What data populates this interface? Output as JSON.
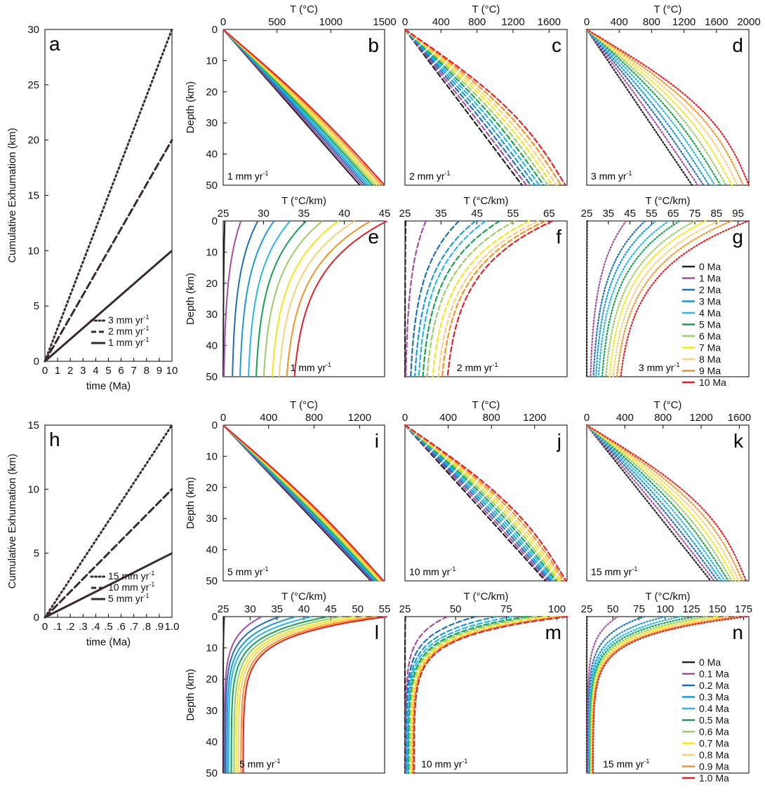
{
  "chart_data": [
    {
      "id": "a",
      "letter": "a",
      "type": "line",
      "xlabel": "time (Ma)",
      "ylabel": "Cumulative Exhumation (km)",
      "xlim": [
        0,
        10
      ],
      "ylim": [
        0,
        30
      ],
      "xticks": [
        "0",
        "1",
        "2",
        "3",
        "4",
        "5",
        "6",
        "7",
        "8",
        "9",
        "10"
      ],
      "yticks": [
        "0",
        "5",
        "10",
        "15",
        "20",
        "25",
        "30"
      ],
      "series": [
        {
          "name": "3 mm yr",
          "sup": "-1",
          "style": "dot",
          "x": [
            0,
            10
          ],
          "y": [
            0,
            30
          ]
        },
        {
          "name": "2 mm yr",
          "sup": "-1",
          "style": "dash",
          "x": [
            0,
            10
          ],
          "y": [
            0,
            20
          ]
        },
        {
          "name": "1 mm yr",
          "sup": "-1",
          "style": "solid",
          "x": [
            0,
            10
          ],
          "y": [
            0,
            10
          ]
        }
      ]
    },
    {
      "id": "b",
      "letter": "b",
      "type": "line",
      "xlabel": "T (°C)",
      "ylabel": "Depth (km)",
      "xmax": 1500,
      "xticks": [
        "0",
        "500",
        "1000",
        "1500"
      ],
      "yticks": [
        "0",
        "10",
        "20",
        "30",
        "40",
        "50"
      ],
      "rate": "1 mm yr",
      "rate_sup": "-1",
      "style": "solid",
      "series_range": {
        "T_base_min": 1270,
        "T_base_max": 1500,
        "first_label": "0 Ma",
        "last_label": "10 Ma",
        "count": 11
      }
    },
    {
      "id": "c",
      "letter": "c",
      "type": "line",
      "xlabel": "T (°C)",
      "ylabel": "",
      "xmax": 1800,
      "xticks": [
        "0",
        "400",
        "800",
        "1200",
        "1600"
      ],
      "yticks": [],
      "rate": "2 mm yr",
      "rate_sup": "-1",
      "style": "dash",
      "series_range": {
        "T_base_min": 1300,
        "T_base_max": 1780,
        "first_label": "0 Ma",
        "last_label": "10 Ma",
        "count": 11
      }
    },
    {
      "id": "d",
      "letter": "d",
      "type": "line",
      "xlabel": "T (°C)",
      "ylabel": "",
      "xmax": 2000,
      "xticks": [
        "0",
        "400",
        "800",
        "1200",
        "1600",
        "2000"
      ],
      "yticks": [],
      "rate": "3 mm yr",
      "rate_sup": "-1",
      "style": "dot",
      "series_range": {
        "T_base_min": 1300,
        "T_base_max": 2000,
        "first_label": "0 Ma",
        "last_label": "10 Ma",
        "count": 11
      }
    },
    {
      "id": "e",
      "letter": "e",
      "type": "line",
      "xlabel": "T (°C/km)",
      "ylabel": "Depth (km)",
      "xmin": 25,
      "xmax": 45,
      "xticks": [
        "25",
        "30",
        "35",
        "40",
        "45"
      ],
      "yticks": [
        "0",
        "10",
        "20",
        "30",
        "40",
        "50"
      ],
      "rate": "1 mm yr",
      "rate_sup": "-1",
      "style": "solid",
      "series_range": {
        "G_base": [
          25.2,
          27.2,
          29.3,
          31.3,
          33.3,
          35.3,
          37.3,
          39.3,
          41.3,
          43.3,
          45.3
        ],
        "G_bottom": [
          25,
          25,
          26,
          26.9,
          27.9,
          28.8,
          29.7,
          30.7,
          31.5,
          32.4,
          33.3
        ]
      }
    },
    {
      "id": "f",
      "letter": "f",
      "type": "line",
      "xlabel": "T (°C/km)",
      "ylabel": "",
      "xmin": 25,
      "xmax": 70,
      "xticks": [
        "25",
        "35",
        "45",
        "55",
        "65"
      ],
      "yticks": [],
      "rate": "2 mm yr",
      "rate_sup": "-1",
      "style": "dash",
      "series_range": {
        "G_base": [
          25.2,
          30.8,
          40,
          44.6,
          47.4,
          51.3,
          55.5,
          59.5,
          62,
          64,
          66
        ],
        "G_bottom": [
          25,
          25,
          26,
          27,
          28,
          29,
          30,
          31.5,
          33,
          34,
          35.5
        ]
      }
    },
    {
      "id": "g",
      "letter": "g",
      "type": "line",
      "xlabel": "T (°C/km)",
      "ylabel": "",
      "xmin": 25,
      "xmax": 100,
      "xticks": [
        "25",
        "35",
        "45",
        "55",
        "65",
        "75",
        "85",
        "95"
      ],
      "yticks": [],
      "rate": "3 mm yr",
      "rate_sup": "-1",
      "style": "dot",
      "series_range": {
        "G_base": [
          25.2,
          43.2,
          52,
          57,
          63,
          68,
          75,
          80,
          86,
          92,
          100
        ],
        "G_bottom": [
          25,
          26,
          27,
          28,
          29,
          30.5,
          32,
          33.5,
          35,
          36.5,
          38
        ]
      },
      "legend": [
        "0 Ma",
        "1 Ma",
        "2 Ma",
        "3 Ma",
        "4 Ma",
        "5 Ma",
        "6 Ma",
        "7 Ma",
        "8 Ma",
        "9 Ma",
        "10 Ma"
      ]
    },
    {
      "id": "h",
      "letter": "h",
      "type": "line",
      "xlabel": "time (Ma)",
      "ylabel": "Cumulative Exhumation (km)",
      "xlim": [
        0,
        1
      ],
      "ylim": [
        0,
        15
      ],
      "xticks": [
        "0",
        ".1",
        ".2",
        ".3",
        ".4",
        ".5",
        ".6",
        ".7",
        ".8",
        ".9",
        "1.0"
      ],
      "yticks": [
        "0",
        "5",
        "10",
        "15"
      ],
      "series": [
        {
          "name": "15 mm yr",
          "sup": "-1",
          "style": "dot",
          "x": [
            0,
            1
          ],
          "y": [
            0,
            15
          ]
        },
        {
          "name": "10 mm yr",
          "sup": "-1",
          "style": "dash",
          "x": [
            0,
            1
          ],
          "y": [
            0,
            10
          ]
        },
        {
          "name": "5 mm yr",
          "sup": "-1",
          "style": "solid",
          "x": [
            0,
            1
          ],
          "y": [
            0,
            5
          ]
        }
      ]
    },
    {
      "id": "i",
      "letter": "i",
      "type": "line",
      "xlabel": "T (°C)",
      "ylabel": "Depth (km)",
      "xmax": 1420,
      "xticks": [
        "0",
        "400",
        "800",
        "1200"
      ],
      "yticks": [
        "0",
        "10",
        "20",
        "30",
        "40",
        "50"
      ],
      "rate": "5 mm yr",
      "rate_sup": "-1",
      "style": "solid",
      "series_range": {
        "T_base_min": 1300,
        "T_base_max": 1410,
        "first_label": "0 Ma",
        "last_label": "1.0 Ma",
        "count": 11
      }
    },
    {
      "id": "j",
      "letter": "j",
      "type": "line",
      "xlabel": "T (°C)",
      "ylabel": "",
      "xmax": 1500,
      "xticks": [
        "0",
        "400",
        "800",
        "1200"
      ],
      "yticks": [],
      "rate": "10 mm yr",
      "rate_sup": "-1",
      "style": "dash",
      "series_range": {
        "T_base_min": 1300,
        "T_base_max": 1490,
        "first_label": "0 Ma",
        "last_label": "1.0 Ma",
        "count": 11
      }
    },
    {
      "id": "k",
      "letter": "k",
      "type": "line",
      "xlabel": "T (°C)",
      "ylabel": "",
      "xmax": 1700,
      "xticks": [
        "0",
        "400",
        "800",
        "1200",
        "1600"
      ],
      "yticks": [],
      "rate": "15 mm yr",
      "rate_sup": "-1",
      "style": "dot",
      "series_range": {
        "T_base_min": 1300,
        "T_base_max": 1670,
        "first_label": "0 Ma",
        "last_label": "1.0 Ma",
        "count": 11
      }
    },
    {
      "id": "l",
      "letter": "l",
      "type": "line",
      "xlabel": "T (°C/km)",
      "ylabel": "Depth (km)",
      "xmin": 25,
      "xmax": 55,
      "xticks": [
        "25",
        "30",
        "35",
        "40",
        "45",
        "50",
        "55"
      ],
      "yticks": [
        "0",
        "10",
        "20",
        "30",
        "40",
        "50"
      ],
      "rate": "5 mm yr",
      "rate_sup": "-1",
      "style": "solid",
      "series_range": {
        "G_base": [
          25.2,
          32.2,
          35.5,
          38.5,
          41.5,
          44.5,
          47,
          49.5,
          51.5,
          53.5,
          55.5
        ],
        "G_bottom": [
          25,
          25.2,
          25.4,
          25.7,
          26,
          26.5,
          27,
          27.4,
          27.8,
          28.3,
          28.7
        ]
      }
    },
    {
      "id": "m",
      "letter": "m",
      "type": "line",
      "xlabel": "T (°C/km)",
      "ylabel": "",
      "xmin": 25,
      "xmax": 105,
      "xticks": [
        "25",
        "50",
        "75",
        "100"
      ],
      "yticks": [],
      "rate": "10 mm yr",
      "rate_sup": "-1",
      "style": "dash",
      "series_range": {
        "G_base": [
          25.2,
          46,
          60,
          70,
          78,
          85,
          90,
          95,
          99,
          102,
          105
        ],
        "G_bottom": [
          25,
          25.3,
          25.6,
          26,
          26.4,
          26.9,
          27.4,
          27.9,
          28.4,
          28.9,
          29.4
        ]
      }
    },
    {
      "id": "n",
      "letter": "n",
      "type": "line",
      "xlabel": "T (°C/km)",
      "ylabel": "",
      "xmin": 25,
      "xmax": 180,
      "xticks": [
        "25",
        "50",
        "75",
        "100",
        "125",
        "150",
        "175"
      ],
      "yticks": [],
      "rate": "15 mm yr",
      "rate_sup": "-1",
      "style": "dot",
      "series_range": {
        "G_base": [
          25.2,
          55,
          80,
          100,
          115,
          128,
          140,
          150,
          160,
          170,
          178
        ],
        "G_bottom": [
          25,
          25.6,
          26.2,
          26.8,
          27.4,
          28,
          28.6,
          29.2,
          29.8,
          30.4,
          31
        ]
      },
      "legend": [
        "0 Ma",
        "0.1 Ma",
        "0.2 Ma",
        "0.3 Ma",
        "0.4 Ma",
        "0.5 Ma",
        "0.6 Ma",
        "0.7 Ma",
        "0.8 Ma",
        "0.9 Ma",
        "1.0 Ma"
      ]
    }
  ],
  "colors": [
    "#231f20",
    "#a64ca6",
    "#1f6fb5",
    "#1a9ad6",
    "#29b6e8",
    "#15a150",
    "#99cc66",
    "#f3e61c",
    "#fbcf77",
    "#f39325",
    "#e61e25"
  ],
  "line_color_a": "#3a2a2a"
}
